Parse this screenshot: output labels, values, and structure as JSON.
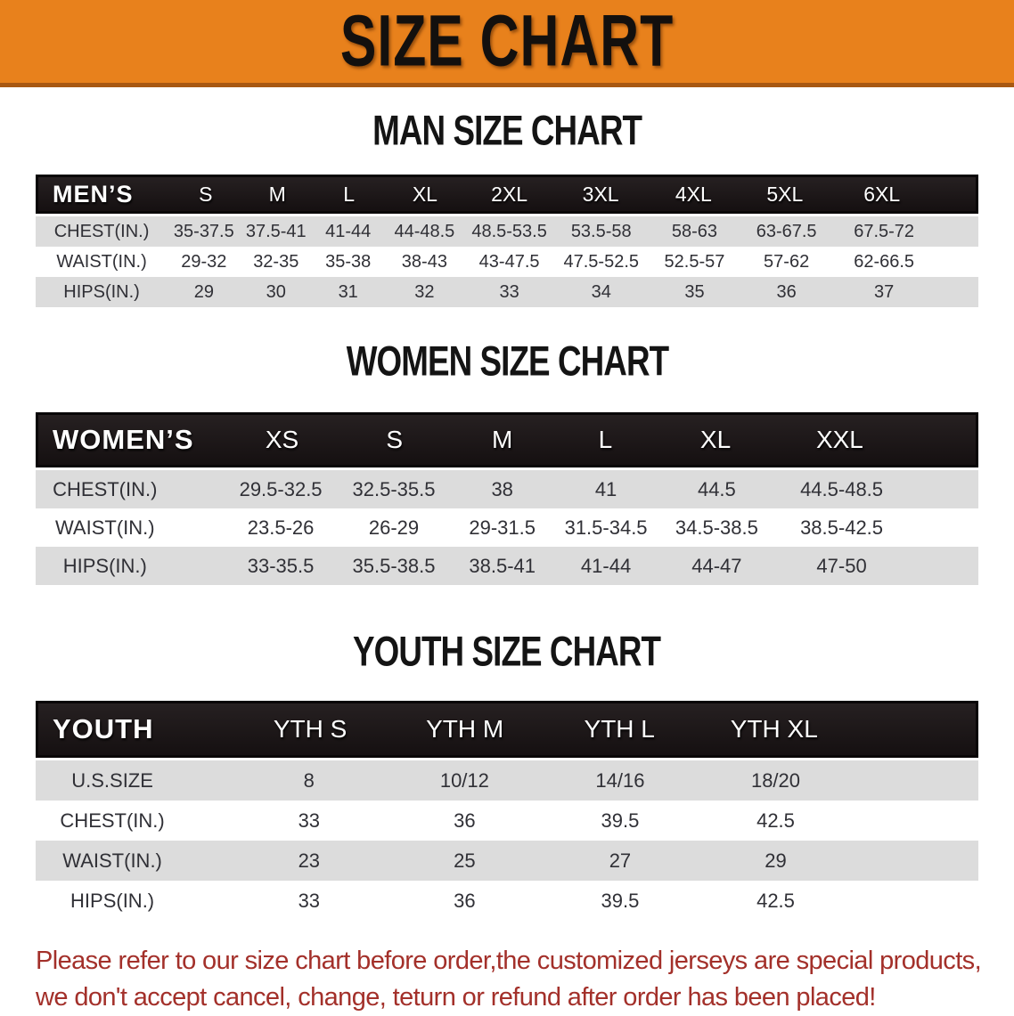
{
  "banner": {
    "title": "SIZE CHART"
  },
  "sections": [
    {
      "heading": "MAN SIZE CHART",
      "table": {
        "header": [
          "MEN’S",
          "S",
          "M",
          "L",
          "XL",
          "2XL",
          "3XL",
          "4XL",
          "5XL",
          "6XL"
        ],
        "rows": [
          {
            "label": "CHEST(IN.)",
            "values": [
              "35-37.5",
              "37.5-41",
              "41-44",
              "44-48.5",
              "48.5-53.5",
              "53.5-58",
              "58-63",
              "63-67.5",
              "67.5-72"
            ]
          },
          {
            "label": "WAIST(IN.)",
            "values": [
              "29-32",
              "32-35",
              "35-38",
              "38-43",
              "43-47.5",
              "47.5-52.5",
              "52.5-57",
              "57-62",
              "62-66.5"
            ]
          },
          {
            "label": "HIPS(IN.)",
            "values": [
              "29",
              "30",
              "31",
              "32",
              "33",
              "34",
              "35",
              "36",
              "37"
            ]
          }
        ]
      }
    },
    {
      "heading": "WOMEN SIZE CHART",
      "table": {
        "header": [
          "WOMEN’S",
          "XS",
          "S",
          "M",
          "L",
          "XL",
          "XXL"
        ],
        "rows": [
          {
            "label": "CHEST(IN.)",
            "values": [
              "29.5-32.5",
              "32.5-35.5",
              "38",
              "41",
              "44.5",
              "44.5-48.5"
            ]
          },
          {
            "label": "WAIST(IN.)",
            "values": [
              "23.5-26",
              "26-29",
              "29-31.5",
              "31.5-34.5",
              "34.5-38.5",
              "38.5-42.5"
            ]
          },
          {
            "label": "HIPS(IN.)",
            "values": [
              "33-35.5",
              "35.5-38.5",
              "38.5-41",
              "41-44",
              "44-47",
              "47-50"
            ]
          }
        ]
      }
    },
    {
      "heading": "YOUTH SIZE CHART",
      "table": {
        "header": [
          "YOUTH",
          "YTH S",
          "YTH M",
          "YTH L",
          "YTH XL"
        ],
        "rows": [
          {
            "label": "U.S.SIZE",
            "values": [
              "8",
              "10/12",
              "14/16",
              "18/20"
            ]
          },
          {
            "label": "CHEST(IN.)",
            "values": [
              "33",
              "36",
              "39.5",
              "42.5"
            ]
          },
          {
            "label": "WAIST(IN.)",
            "values": [
              "23",
              "25",
              "27",
              "29"
            ]
          },
          {
            "label": "HIPS(IN.)",
            "values": [
              "33",
              "36",
              "39.5",
              "42.5"
            ]
          }
        ]
      }
    }
  ],
  "disclaimer": {
    "line1": "Please refer to our size chart before order,the customized jerseys are special products,",
    "line2": "we don't accept cancel, change, teturn or refund after order has been placed!"
  },
  "colors": {
    "banner_orange": "#e8811c",
    "banner_border": "#a85812",
    "header_black": "#1a1516",
    "header_text": "#ffffff",
    "row_shaded_gray": "#dcdcdc",
    "row_text": "#303036",
    "disclaimer_red": "#a3302a"
  }
}
